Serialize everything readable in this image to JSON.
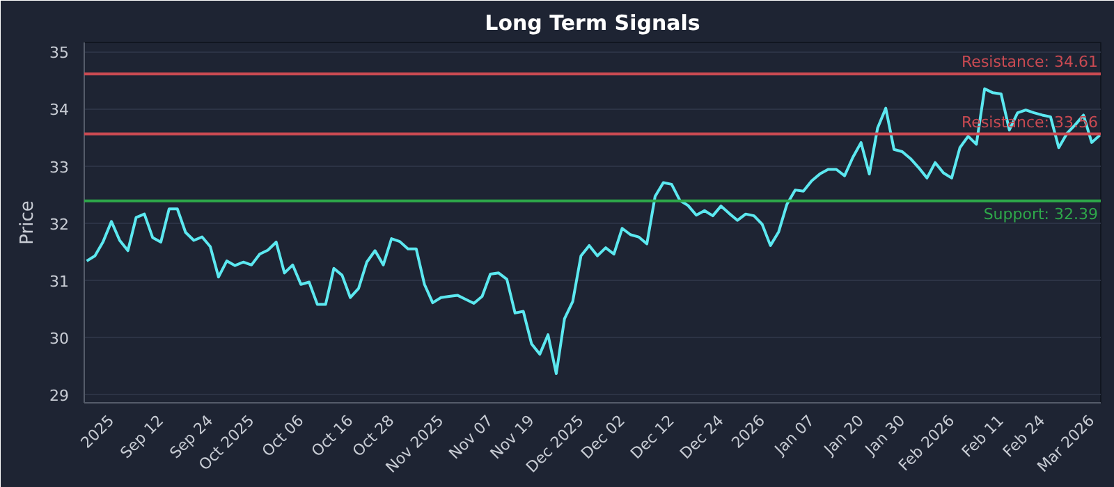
{
  "chart_data": {
    "type": "line",
    "title": "Long Term Signals",
    "ylabel": "Price",
    "categories": [
      null,
      null,
      null,
      "2025",
      null,
      null,
      null,
      null,
      null,
      "Sep 12",
      null,
      null,
      null,
      null,
      null,
      "Sep 24",
      null,
      null,
      null,
      null,
      "Oct 2025",
      null,
      null,
      null,
      null,
      null,
      "Oct 06",
      null,
      null,
      null,
      null,
      null,
      "Oct 16",
      null,
      null,
      null,
      null,
      "Oct 28",
      null,
      null,
      null,
      null,
      null,
      "Nov 2025",
      null,
      null,
      null,
      null,
      null,
      "Nov 07",
      null,
      null,
      null,
      null,
      "Nov 19",
      null,
      null,
      null,
      null,
      null,
      "Dec 2025",
      null,
      null,
      null,
      null,
      "Dec 02",
      null,
      null,
      null,
      null,
      null,
      "Dec 12",
      null,
      null,
      null,
      null,
      null,
      "Dec 24",
      null,
      null,
      null,
      null,
      "2026",
      null,
      null,
      null,
      null,
      null,
      "Jan 07",
      null,
      null,
      null,
      null,
      null,
      "Jan 20",
      null,
      null,
      null,
      null,
      "Jan 30",
      null,
      null,
      null,
      null,
      null,
      "Feb 2026",
      null,
      null,
      null,
      null,
      null,
      "Feb 11",
      null,
      null,
      null,
      null,
      "Feb 24",
      null,
      null,
      null,
      null,
      null,
      "Mar 2026",
      null
    ],
    "series": [
      {
        "color": "#5ce8f0",
        "values": [
          31.34,
          31.43,
          31.68,
          32.03,
          31.7,
          31.52,
          32.1,
          32.16,
          31.75,
          31.67,
          32.25,
          32.25,
          31.84,
          31.7,
          31.76,
          31.59,
          31.06,
          31.34,
          31.26,
          31.32,
          31.27,
          31.46,
          31.53,
          31.67,
          31.13,
          31.27,
          30.93,
          30.97,
          30.58,
          30.58,
          31.21,
          31.09,
          30.7,
          30.86,
          31.32,
          31.52,
          31.27,
          31.73,
          31.68,
          31.55,
          31.55,
          30.93,
          30.61,
          30.7,
          30.72,
          30.74,
          30.67,
          30.6,
          30.72,
          31.11,
          31.13,
          31.02,
          30.43,
          30.46,
          29.89,
          29.71,
          30.05,
          29.37,
          30.33,
          30.63,
          31.43,
          31.61,
          31.43,
          31.57,
          31.46,
          31.91,
          31.8,
          31.76,
          31.64,
          32.47,
          32.71,
          32.68,
          32.4,
          32.31,
          32.14,
          32.22,
          32.13,
          32.3,
          32.17,
          32.05,
          32.16,
          32.13,
          31.98,
          31.61,
          31.85,
          32.33,
          32.58,
          32.56,
          32.74,
          32.86,
          32.94,
          32.94,
          32.83,
          33.15,
          33.41,
          32.86,
          33.66,
          34.01,
          33.29,
          33.25,
          33.13,
          32.97,
          32.79,
          33.06,
          32.88,
          32.79,
          33.32,
          33.52,
          33.38,
          34.35,
          34.28,
          34.26,
          33.63,
          33.93,
          33.98,
          33.93,
          33.89,
          33.86,
          33.32,
          33.57,
          33.72,
          33.89,
          33.41,
          33.54
        ]
      }
    ],
    "ylim": [
      28.86,
      35.16
    ],
    "yticks": [
      29,
      30,
      31,
      32,
      33,
      34,
      35
    ],
    "ref_lines": [
      {
        "axis": "y",
        "value": 34.61,
        "label": "Resistance: 34.61",
        "color": "#c94a52"
      },
      {
        "axis": "y",
        "value": 33.56,
        "label": "Resistance: 33.56",
        "color": "#c94a52"
      },
      {
        "axis": "y",
        "value": 32.39,
        "label": "Support: 32.39",
        "color": "#2ea84a"
      }
    ],
    "grid": "y",
    "line_style": "solid"
  }
}
